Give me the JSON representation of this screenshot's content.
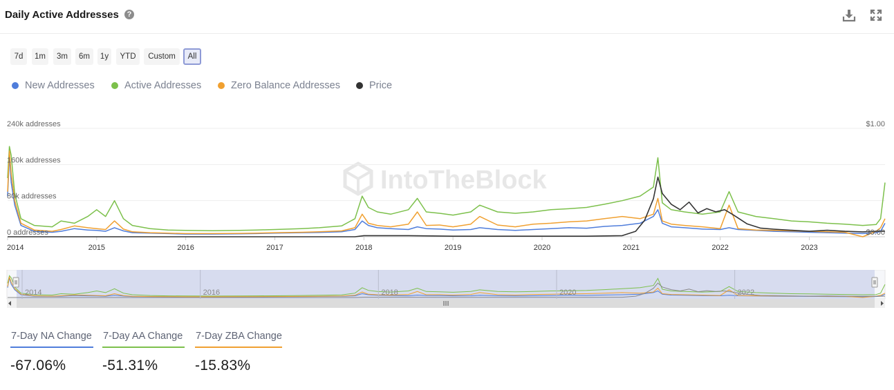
{
  "header": {
    "title": "Daily Active Addresses",
    "help_glyph": "?"
  },
  "range_buttons": [
    "7d",
    "1m",
    "3m",
    "6m",
    "1y",
    "YTD",
    "Custom",
    "All"
  ],
  "active_range": "All",
  "legend": [
    {
      "label": "New Addresses",
      "color": "#4f7ddb"
    },
    {
      "label": "Active Addresses",
      "color": "#7cc04b"
    },
    {
      "label": "Zero Balance Addresses",
      "color": "#f0a030"
    },
    {
      "label": "Price",
      "color": "#333333"
    }
  ],
  "watermark": "IntoTheBlock",
  "navigator_years": [
    "2014",
    "2016",
    "2018",
    "2020",
    "2022"
  ],
  "chart_data": {
    "type": "line",
    "title": "Daily Active Addresses",
    "x_ticks": [
      "2014",
      "2015",
      "2016",
      "2017",
      "2018",
      "2019",
      "2020",
      "2021",
      "2022",
      "2023"
    ],
    "y_left_ticks": [
      "0 addresses",
      "80k addresses",
      "160k addresses",
      "240k addresses"
    ],
    "y_right_ticks": [
      "$0.00",
      "$1.00"
    ],
    "ylim_left": [
      0,
      240000
    ],
    "ylim_right": [
      0,
      1.0
    ],
    "xlim": [
      2014.0,
      2023.85
    ],
    "grid": true,
    "legend_position": "top-left",
    "series": [
      {
        "name": "New Addresses",
        "color": "#4f7ddb",
        "axis": "left",
        "x": [
          2014.0,
          2014.02,
          2014.04,
          2014.08,
          2014.15,
          2014.3,
          2014.5,
          2014.6,
          2014.75,
          2014.9,
          2015.0,
          2015.1,
          2015.2,
          2015.3,
          2015.4,
          2015.6,
          2015.8,
          2016.0,
          2016.3,
          2016.6,
          2016.8,
          2017.0,
          2017.3,
          2017.5,
          2017.75,
          2017.9,
          2017.98,
          2018.05,
          2018.15,
          2018.3,
          2018.5,
          2018.6,
          2018.7,
          2018.85,
          2019.0,
          2019.2,
          2019.3,
          2019.5,
          2019.7,
          2019.9,
          2020.1,
          2020.3,
          2020.5,
          2020.7,
          2020.9,
          2021.1,
          2021.25,
          2021.3,
          2021.35,
          2021.45,
          2021.6,
          2021.8,
          2022.0,
          2022.1,
          2022.2,
          2022.4,
          2022.6,
          2022.8,
          2023.0,
          2023.2,
          2023.4,
          2023.6,
          2023.75,
          2023.8,
          2023.85
        ],
        "y": [
          90000,
          180000,
          120000,
          70000,
          25000,
          12000,
          10000,
          12000,
          18000,
          15000,
          14000,
          12000,
          20000,
          13000,
          9000,
          8000,
          7000,
          6000,
          6000,
          6500,
          7000,
          8000,
          9000,
          9500,
          11000,
          16000,
          35000,
          25000,
          20000,
          18000,
          16000,
          22000,
          18000,
          17000,
          15000,
          16000,
          20000,
          16000,
          14000,
          16000,
          18000,
          20000,
          19000,
          23000,
          25000,
          30000,
          45000,
          60000,
          30000,
          22000,
          20000,
          17000,
          16000,
          20000,
          16000,
          14000,
          12000,
          11000,
          10000,
          9000,
          8000,
          7000,
          9000,
          12000,
          30000
        ]
      },
      {
        "name": "Active Addresses",
        "color": "#7cc04b",
        "axis": "left",
        "x": [
          2014.0,
          2014.02,
          2014.04,
          2014.08,
          2014.15,
          2014.3,
          2014.5,
          2014.6,
          2014.75,
          2014.9,
          2015.0,
          2015.1,
          2015.2,
          2015.3,
          2015.4,
          2015.6,
          2015.8,
          2016.0,
          2016.3,
          2016.6,
          2016.8,
          2017.0,
          2017.3,
          2017.5,
          2017.75,
          2017.9,
          2017.98,
          2018.05,
          2018.15,
          2018.3,
          2018.5,
          2018.6,
          2018.7,
          2018.85,
          2019.0,
          2019.2,
          2019.3,
          2019.5,
          2019.7,
          2019.9,
          2020.1,
          2020.3,
          2020.5,
          2020.7,
          2020.9,
          2021.1,
          2021.25,
          2021.3,
          2021.35,
          2021.45,
          2021.6,
          2021.8,
          2022.0,
          2022.1,
          2022.2,
          2022.4,
          2022.6,
          2022.8,
          2023.0,
          2023.2,
          2023.4,
          2023.6,
          2023.75,
          2023.8,
          2023.85
        ],
        "y": [
          130000,
          200000,
          180000,
          95000,
          40000,
          25000,
          22000,
          35000,
          30000,
          45000,
          60000,
          45000,
          80000,
          40000,
          25000,
          18000,
          15000,
          14000,
          13500,
          14000,
          15000,
          16000,
          18000,
          20000,
          24000,
          40000,
          90000,
          65000,
          55000,
          50000,
          60000,
          85000,
          55000,
          52000,
          48000,
          55000,
          70000,
          55000,
          52000,
          55000,
          60000,
          62000,
          65000,
          72000,
          80000,
          90000,
          110000,
          175000,
          75000,
          60000,
          55000,
          50000,
          55000,
          100000,
          55000,
          45000,
          40000,
          35000,
          33000,
          30000,
          28000,
          25000,
          27000,
          40000,
          120000
        ]
      },
      {
        "name": "Zero Balance Addresses",
        "color": "#f0a030",
        "axis": "left",
        "x": [
          2014.0,
          2014.02,
          2014.04,
          2014.08,
          2014.15,
          2014.3,
          2014.5,
          2014.6,
          2014.75,
          2014.9,
          2015.0,
          2015.1,
          2015.2,
          2015.3,
          2015.4,
          2015.6,
          2015.8,
          2016.0,
          2016.3,
          2016.6,
          2016.8,
          2017.0,
          2017.3,
          2017.5,
          2017.75,
          2017.9,
          2017.98,
          2018.05,
          2018.15,
          2018.3,
          2018.5,
          2018.6,
          2018.7,
          2018.85,
          2019.0,
          2019.2,
          2019.3,
          2019.5,
          2019.7,
          2019.9,
          2020.1,
          2020.3,
          2020.5,
          2020.7,
          2020.9,
          2021.1,
          2021.25,
          2021.3,
          2021.35,
          2021.45,
          2021.6,
          2021.8,
          2022.0,
          2022.1,
          2022.2,
          2022.4,
          2022.6,
          2022.8,
          2023.0,
          2023.2,
          2023.4,
          2023.6,
          2023.75,
          2023.8,
          2023.85
        ],
        "y": [
          100000,
          190000,
          140000,
          80000,
          30000,
          15000,
          12000,
          16000,
          24000,
          20000,
          18000,
          16000,
          35000,
          17000,
          11000,
          9000,
          8000,
          7000,
          7000,
          7500,
          8000,
          9000,
          10000,
          11000,
          13000,
          20000,
          50000,
          30000,
          25000,
          22000,
          28000,
          55000,
          25000,
          26000,
          22000,
          28000,
          45000,
          26000,
          22000,
          28000,
          30000,
          33000,
          35000,
          40000,
          45000,
          40000,
          50000,
          85000,
          35000,
          28000,
          25000,
          22000,
          18000,
          70000,
          18000,
          15000,
          14000,
          13000,
          12000,
          11000,
          10000,
          0,
          12000,
          20000,
          40000
        ]
      },
      {
        "name": "Price",
        "color": "#333333",
        "axis": "right",
        "x": [
          2014.0,
          2015.0,
          2016.0,
          2017.0,
          2017.9,
          2018.0,
          2018.5,
          2019.0,
          2019.5,
          2020.0,
          2020.5,
          2020.9,
          2021.05,
          2021.15,
          2021.25,
          2021.3,
          2021.35,
          2021.45,
          2021.55,
          2021.65,
          2021.75,
          2021.85,
          2021.95,
          2022.05,
          2022.15,
          2022.3,
          2022.45,
          2022.6,
          2022.8,
          2023.0,
          2023.2,
          2023.4,
          2023.6,
          2023.75,
          2023.85
        ],
        "y": [
          0.0,
          0.0,
          0.0,
          0.0,
          0.0,
          0.01,
          0.01,
          0.005,
          0.005,
          0.005,
          0.005,
          0.01,
          0.05,
          0.15,
          0.35,
          0.55,
          0.4,
          0.3,
          0.25,
          0.32,
          0.22,
          0.26,
          0.23,
          0.25,
          0.2,
          0.12,
          0.08,
          0.07,
          0.06,
          0.05,
          0.06,
          0.05,
          0.045,
          0.05,
          0.05
        ]
      }
    ]
  },
  "stats": [
    {
      "label": "7-Day NA Change",
      "value": "-67.06%",
      "color": "#4f7ddb"
    },
    {
      "label": "7-Day AA Change",
      "value": "-51.31%",
      "color": "#7cc04b"
    },
    {
      "label": "7-Day ZBA Change",
      "value": "-15.83%",
      "color": "#f0a030"
    }
  ]
}
